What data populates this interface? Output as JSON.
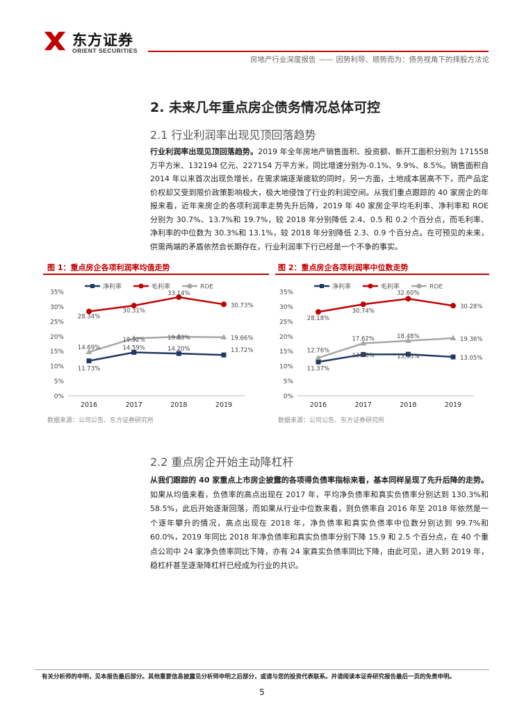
{
  "header": {
    "logo_cn": "东方证券",
    "logo_en": "ORIENT SECURITIES",
    "report_type": "房地产行业深度报告",
    "separator": "——",
    "report_subtitle": "因势利导、顺势而为：债务视角下的择股方法论"
  },
  "section": {
    "title": "2. 未来几年重点房企债务情况总体可控",
    "sub1": "2.1 行业利润率出现见顶回落趋势",
    "para1_lead": "行业利润率出现见顶回落趋势。",
    "para1_body": "2019 年全年房地产销售面积、投资额、新开工面积分别为 171558 万平方米、132194 亿元、227154 万平方米，同比增速分别为-0.1%、9.9%、8.5%。销售面积自 2014 年以来首次出现负增长，在需求端逐渐疲软的同时，另一方面，土地成本居高不下，而产品定价权却又受到限价政策影响极大，极大地侵蚀了行业的利润空间。从我们重点跟踪的 40 家房企的年报来看，近年来房企的各项利润率走势先升后降，2019 年 40 家房企平均毛利率、净利率和 ROE 分别为 30.7%、13.7%和 19.7%，较 2018 年分别降低 2.4、0.5 和 0.2 个百分点，而毛利率、净利率的中位数为 30.3%和 13.1%，较 2018 年分别降低 2.3、0.9 个百分点。在可预见的未来，供需两端的矛盾依然会长期存在，行业利润率下行已经是一个不争的事实。",
    "sub2": "2.2 重点房企开始主动降杠杆",
    "para2_lead": "从我们跟踪的 40 家重点上市房企披露的各项得负债率指标来看，基本同样呈现了先升后降的走势。",
    "para2_body": "如果从均值来看，负债率的高点出现在 2017 年，平均净负债率和真实负债率分别达到 130.3%和 58.5%，此后开始逐渐回落，而如果从行业中位数来看，则负债率自 2016 年至 2018 年依然是一个逐年攀升的情况，高点出现在 2018 年，净负债率和真实负债率中位数分别达到 99.7%和 60.0%，2019 年同比 2018 年净负债率和真实负债率分别下降 15.9 和 2.5 个百分点，在 40 个重点公司中 24 家净负债率同比下降，亦有 24 家真实负债率同比下降，由此可见，进入到 2019 年，稳杠杆甚至逐渐降杠杆已经成为行业的共识。"
  },
  "fig1": {
    "title": "图 1：重点房企各项利润率均值走势",
    "source": "数据来源：公司公告、东方证券研究所"
  },
  "fig2": {
    "title": "图 2：重点房企各项利润率中位数走势",
    "source": "数据来源：公司公告、东方证券研究所"
  },
  "chart_data": [
    {
      "type": "line",
      "title": "图 1：重点房企各项利润率均值走势",
      "x": [
        "2016",
        "2017",
        "2018",
        "2019"
      ],
      "ylim": [
        0,
        35
      ],
      "yticks": [
        "0%",
        "5%",
        "10%",
        "15%",
        "20%",
        "25%",
        "30%",
        "35%"
      ],
      "legend_position": "top",
      "grid": false,
      "series": [
        {
          "name": "净利率",
          "color": "#1f3864",
          "values": [
            11.73,
            14.59,
            14.2,
            13.72
          ],
          "labels": [
            "11.73%",
            "14.59%",
            "14.20%",
            "13.72%"
          ]
        },
        {
          "name": "毛利率",
          "color": "#c00000",
          "values": [
            28.34,
            30.31,
            33.14,
            30.73
          ],
          "labels": [
            "28.34%",
            "30.31%",
            "33.14%",
            "30.73%"
          ]
        },
        {
          "name": "ROE",
          "color": "#a6a6a6",
          "values": [
            14.69,
            19.32,
            19.83,
            19.66
          ],
          "labels": [
            "14.69%",
            "19.32%",
            "19.83%",
            "19.66%"
          ]
        }
      ]
    },
    {
      "type": "line",
      "title": "图 2：重点房企各项利润率中位数走势",
      "x": [
        "2016",
        "2017",
        "2018",
        "2019"
      ],
      "ylim": [
        0,
        35
      ],
      "yticks": [
        "0%",
        "5%",
        "10%",
        "15%",
        "20%",
        "25%",
        "30%",
        "35%"
      ],
      "legend_position": "top",
      "grid": false,
      "series": [
        {
          "name": "净利率",
          "color": "#1f3864",
          "values": [
            11.37,
            13.88,
            13.95,
            13.05
          ],
          "labels": [
            "11.37%",
            "13.88%",
            "13.95%",
            "13.05%"
          ]
        },
        {
          "name": "毛利率",
          "color": "#c00000",
          "values": [
            28.18,
            30.74,
            32.6,
            30.28
          ],
          "labels": [
            "28.18%",
            "30.74%",
            "32.60%",
            "30.28%"
          ]
        },
        {
          "name": "ROE",
          "color": "#a6a6a6",
          "values": [
            12.76,
            17.62,
            18.48,
            19.36
          ],
          "labels": [
            "12.76%",
            "17.62%",
            "18.48%",
            "19.36%"
          ]
        }
      ]
    }
  ],
  "footer": {
    "disclaimer": "有关分析师的申明，见本报告最后部分。其他重要信息披露见分析师申明之后部分，或请与您的投资代表联系。并请阅读本证券研究报告最后一页的免责申明。",
    "page": "5"
  }
}
